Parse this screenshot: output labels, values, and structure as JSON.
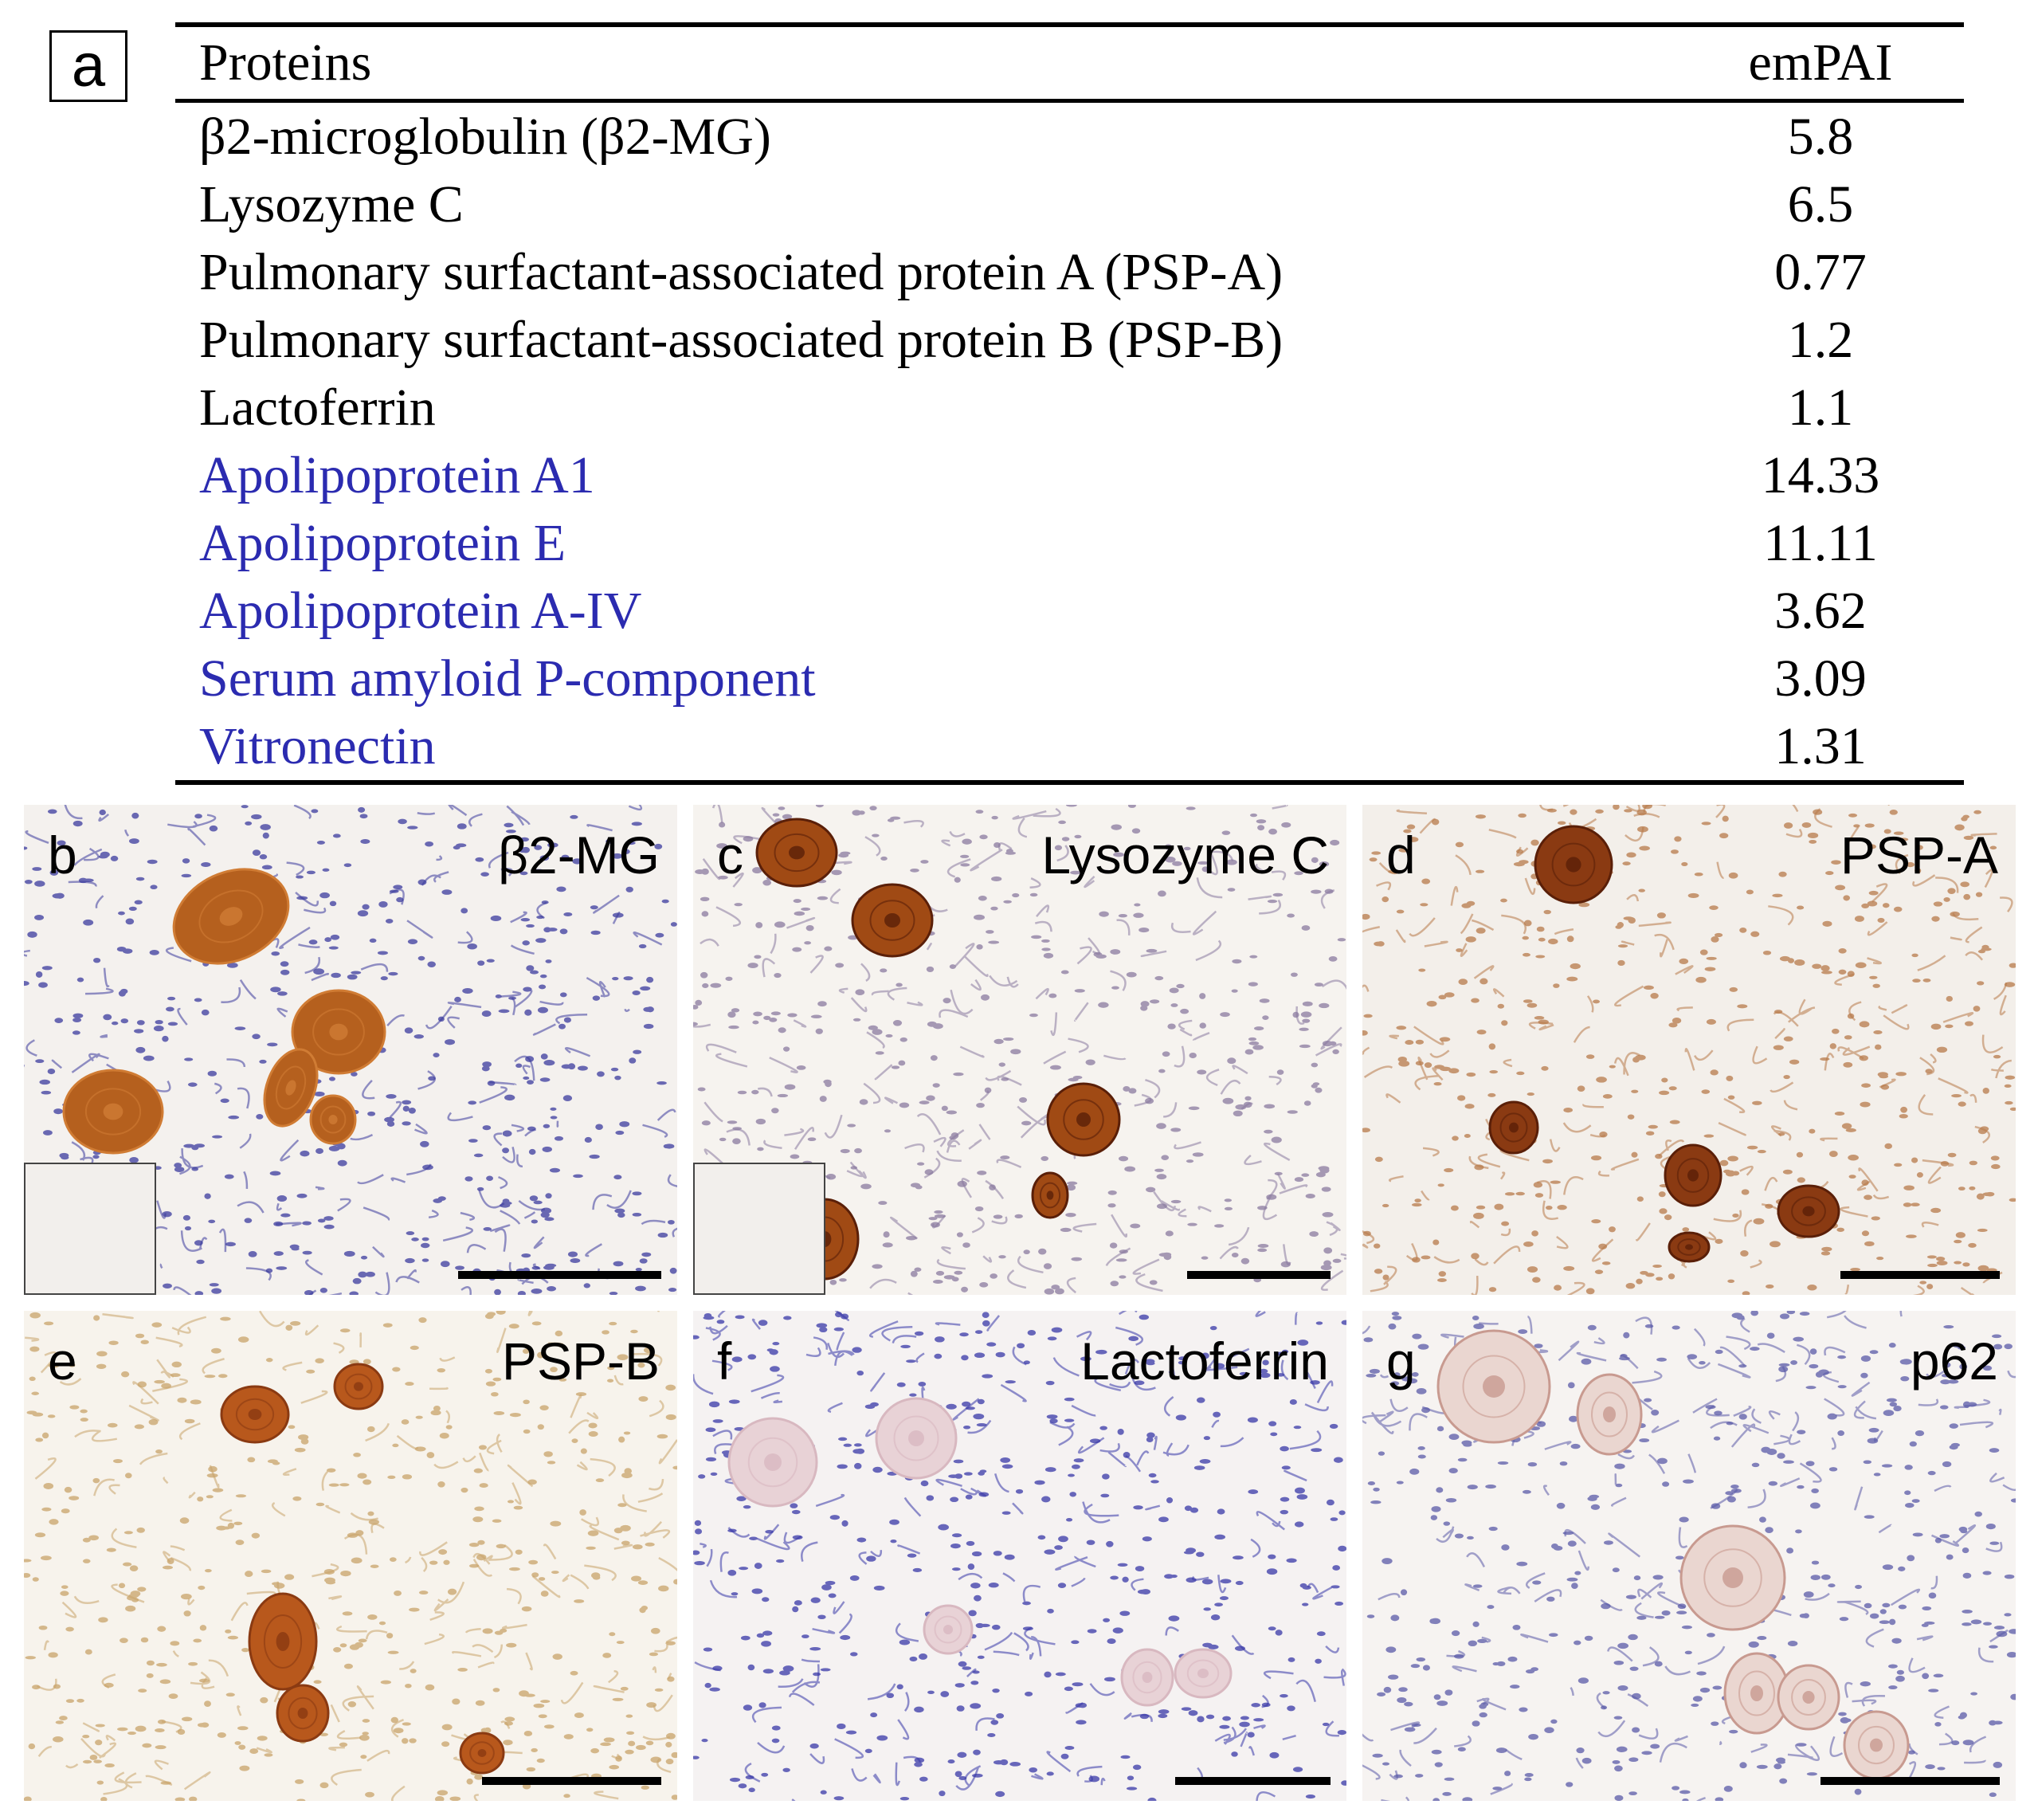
{
  "panel_a": {
    "label": "a",
    "header": {
      "proteins": "Proteins",
      "value": "emPAI"
    },
    "rows": [
      {
        "name": "β2-microglobulin (β2-MG)",
        "value": "5.8",
        "color": "#000000"
      },
      {
        "name": "Lysozyme C",
        "value": "6.5",
        "color": "#000000"
      },
      {
        "name": "Pulmonary surfactant-associated protein A (PSP-A)",
        "value": "0.77",
        "color": "#000000"
      },
      {
        "name": "Pulmonary surfactant-associated protein B (PSP-B)",
        "value": "1.2",
        "color": "#000000"
      },
      {
        "name": "Lactoferrin",
        "value": "1.1",
        "color": "#000000"
      },
      {
        "name": "Apolipoprotein A1",
        "value": "14.33",
        "color": "#2b2bb0"
      },
      {
        "name": "Apolipoprotein E",
        "value": "11.11",
        "color": "#2b2bb0"
      },
      {
        "name": "Apolipoprotein A-IV",
        "value": "3.62",
        "color": "#2b2bb0"
      },
      {
        "name": "Serum amyloid P-component",
        "value": "3.09",
        "color": "#2b2bb0"
      },
      {
        "name": "Vitronectin",
        "value": "1.31",
        "color": "#2b2bb0"
      }
    ]
  },
  "panels": {
    "b": {
      "label": "b",
      "name": "β2-MG"
    },
    "c": {
      "label": "c",
      "name": "Lysozyme C"
    },
    "d": {
      "label": "d",
      "name": "PSP-A"
    },
    "e": {
      "label": "e",
      "name": "PSP-B"
    },
    "f": {
      "label": "f",
      "name": "Lactoferrin"
    },
    "g": {
      "label": "g",
      "name": "p62"
    }
  },
  "colors": {
    "stain_brown": "#b5601e",
    "stain_dark": "#7a2e0c",
    "hematoxylin": "#3b3b9e",
    "background": "#f4f1ee",
    "pale_body": "#e8d2d6",
    "protein_blue": "#2b2bb0"
  }
}
